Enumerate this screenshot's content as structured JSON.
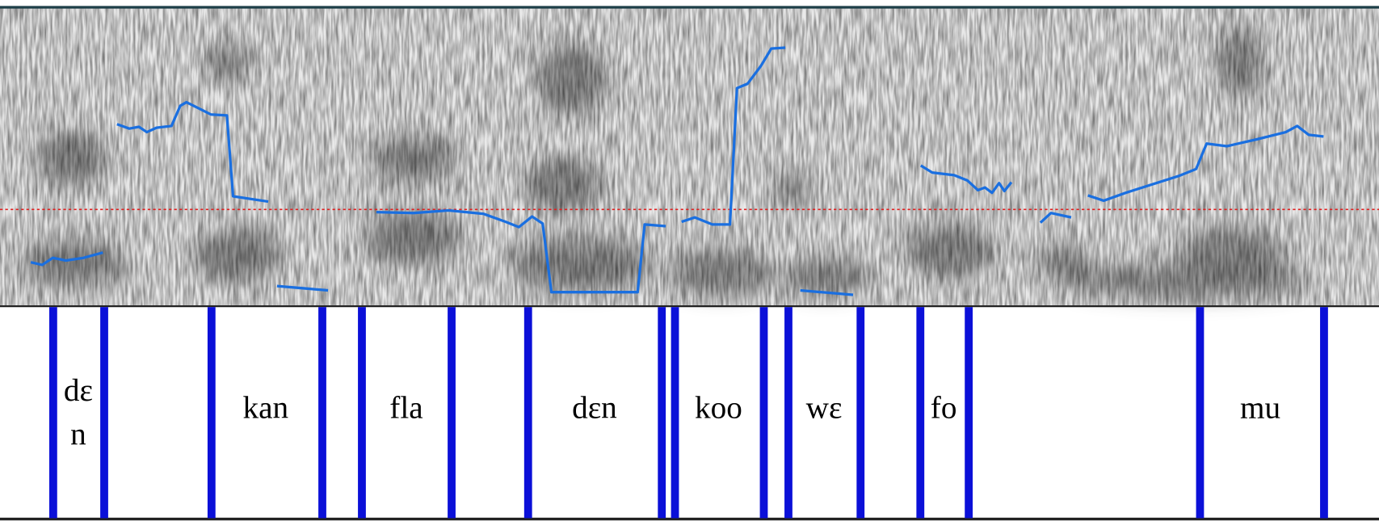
{
  "intervals": [
    {
      "lines": [
        "dɛ",
        "n"
      ]
    },
    {
      "text": "kan"
    },
    {
      "text": "fla"
    },
    {
      "text": "dɛn"
    },
    {
      "text": "koo"
    },
    {
      "text": "wɛ"
    },
    {
      "text": "fo"
    },
    {
      "text": "mu"
    }
  ]
}
